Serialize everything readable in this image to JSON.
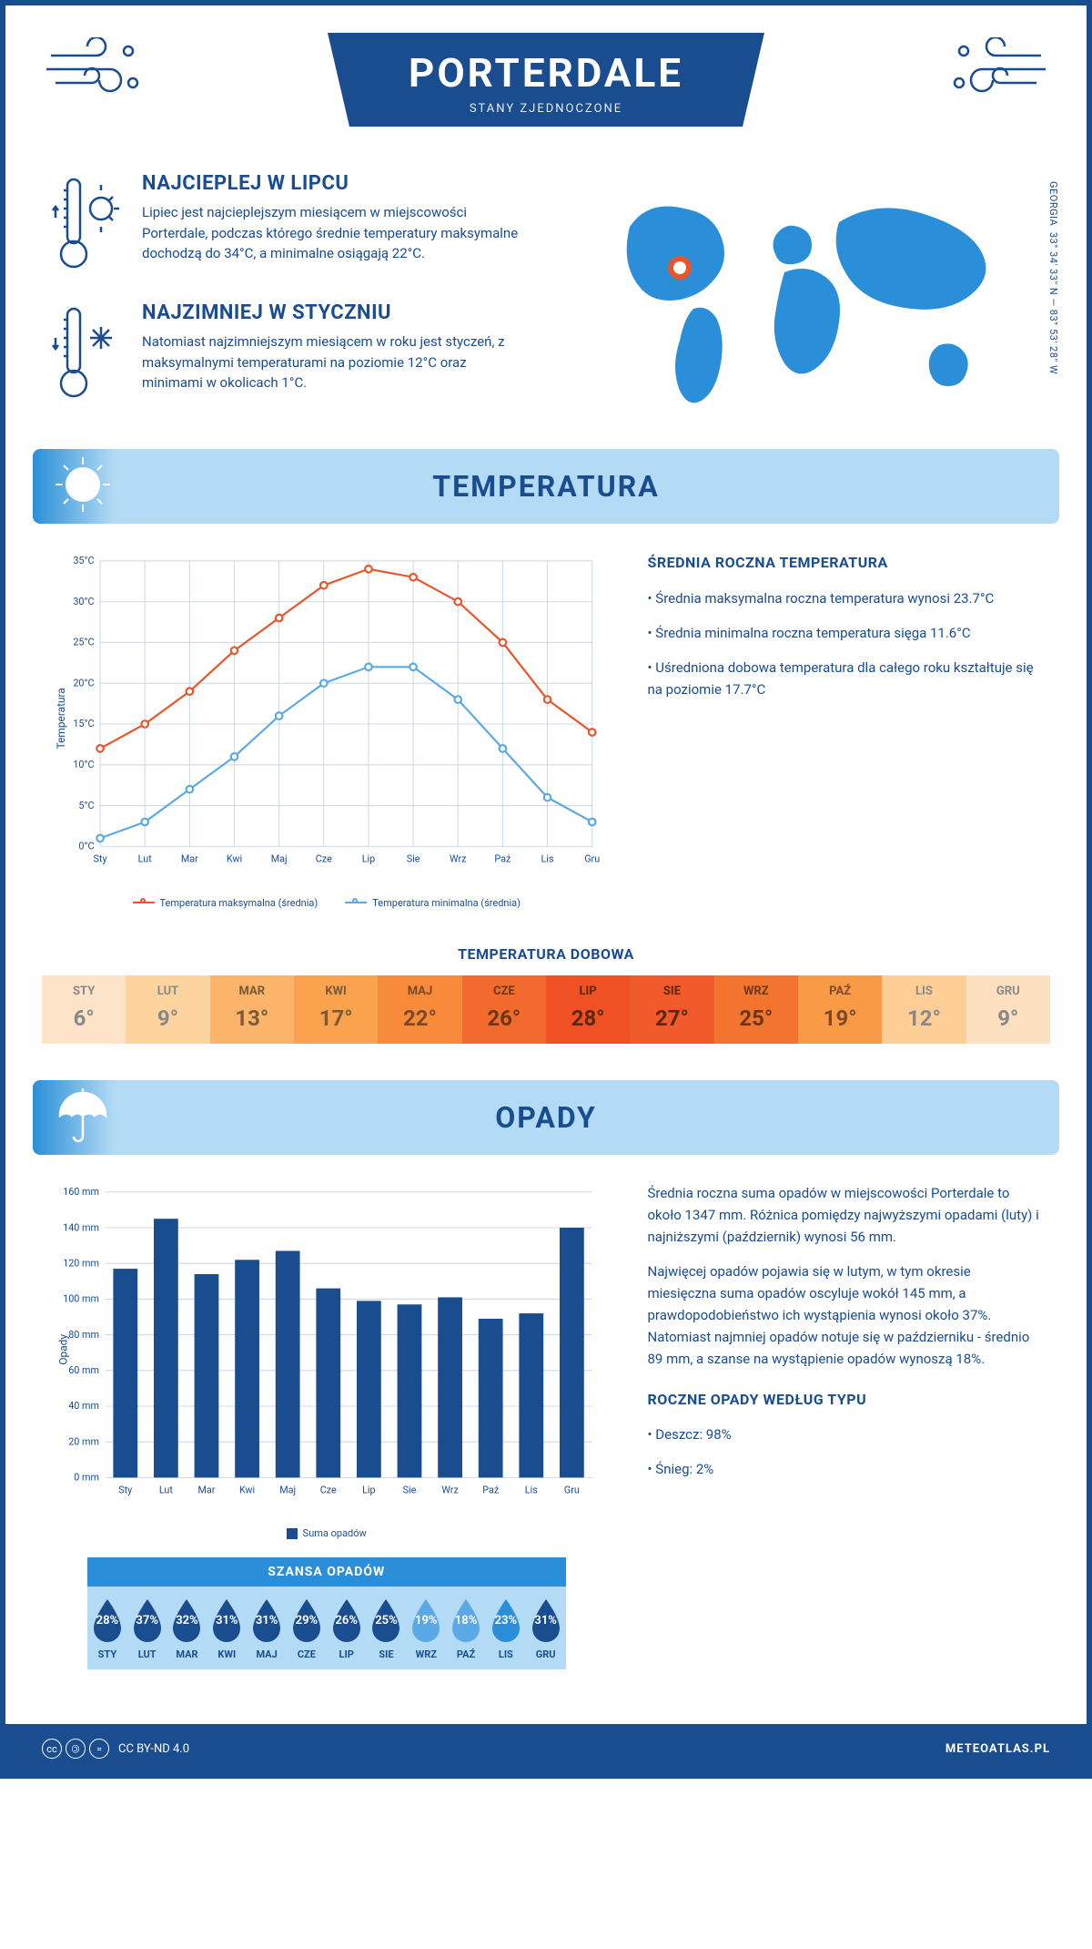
{
  "header": {
    "city": "PORTERDALE",
    "country": "STANY ZJEDNOCZONE"
  },
  "coords": {
    "text": "33° 34' 33'' N — 83° 53' 28'' W",
    "region": "GEORGIA"
  },
  "facts": {
    "warm": {
      "title": "NAJCIEPLEJ W LIPCU",
      "body": "Lipiec jest najcieplejszym miesiącem w miejscowości Porterdale, podczas którego średnie temperatury maksymalne dochodzą do 34°C, a minimalne osiągają 22°C."
    },
    "cold": {
      "title": "NAJZIMNIEJ W STYCZNIU",
      "body": "Natomiast najzimniejszym miesiącem w roku jest styczeń, z maksymalnymi temperaturami na poziomie 12°C oraz minimami w okolicach 1°C."
    }
  },
  "temp_section": {
    "title": "TEMPERATURA",
    "stats_title": "ŚREDNIA ROCZNA TEMPERATURA",
    "bullets": [
      "• Średnia maksymalna roczna temperatura wynosi 23.7°C",
      "• Średnia minimalna roczna temperatura sięga 11.6°C",
      "• Uśredniona dobowa temperatura dla całego roku kształtuje się na poziomie 17.7°C"
    ],
    "chart": {
      "type": "line",
      "months": [
        "Sty",
        "Lut",
        "Mar",
        "Kwi",
        "Maj",
        "Cze",
        "Lip",
        "Sie",
        "Wrz",
        "Paź",
        "Lis",
        "Gru"
      ],
      "ylabel": "Temperatura",
      "ylim": [
        0,
        35
      ],
      "ytick_step": 5,
      "ytick_suffix": "°C",
      "grid_color": "#d0d8e8",
      "series": [
        {
          "name": "Temperatura maksymalna (średnia)",
          "color": "#e8552b",
          "values": [
            12,
            15,
            19,
            24,
            28,
            32,
            34,
            33,
            30,
            25,
            18,
            14
          ]
        },
        {
          "name": "Temperatura minimalna (średnia)",
          "color": "#5aa9e6",
          "values": [
            1,
            3,
            7,
            11,
            16,
            20,
            22,
            22,
            18,
            12,
            6,
            3
          ]
        }
      ]
    },
    "daily_title": "TEMPERATURA DOBOWA",
    "daily": {
      "months": [
        "STY",
        "LUT",
        "MAR",
        "KWI",
        "MAJ",
        "CZE",
        "LIP",
        "SIE",
        "WRZ",
        "PAŹ",
        "LIS",
        "GRU"
      ],
      "values": [
        "6°",
        "9°",
        "13°",
        "17°",
        "22°",
        "26°",
        "28°",
        "27°",
        "25°",
        "19°",
        "12°",
        "9°"
      ],
      "bg_colors": [
        "#fde4c8",
        "#fdd39e",
        "#fcb36a",
        "#faa24e",
        "#f78b3a",
        "#f26a2e",
        "#ef5124",
        "#f15a2a",
        "#f3742f",
        "#f99a47",
        "#fdcf97",
        "#fde0bf"
      ],
      "text_colors": [
        "#888",
        "#888",
        "#7a5a3a",
        "#7a5a3a",
        "#7a4a2a",
        "#6a3818",
        "#5a2808",
        "#5a2808",
        "#6a3818",
        "#7a4a2a",
        "#888",
        "#888"
      ]
    }
  },
  "precip_section": {
    "title": "OPADY",
    "para1": "Średnia roczna suma opadów w miejscowości Porterdale to około 1347 mm. Różnica pomiędzy najwyższymi opadami (luty) i najniższymi (październik) wynosi 56 mm.",
    "para2": "Najwięcej opadów pojawia się w lutym, w tym okresie miesięczna suma opadów oscyluje wokół 145 mm, a prawdopodobieństwo ich wystąpienia wynosi około 37%. Natomiast najmniej opadów notuje się w październiku - średnio 89 mm, a szanse na wystąpienie opadów wynoszą 18%.",
    "chart": {
      "type": "bar",
      "months": [
        "Sty",
        "Lut",
        "Mar",
        "Kwi",
        "Maj",
        "Cze",
        "Lip",
        "Sie",
        "Wrz",
        "Paź",
        "Lis",
        "Gru"
      ],
      "ylabel": "Opady",
      "ylim": [
        0,
        160
      ],
      "ytick_step": 20,
      "ytick_suffix": " mm",
      "bar_color": "#1a4d8f",
      "grid_color": "#d0d8e8",
      "legend": "Suma opadów",
      "values": [
        117,
        145,
        114,
        122,
        127,
        106,
        99,
        97,
        101,
        89,
        92,
        140
      ]
    },
    "chance_title": "SZANSA OPADÓW",
    "chance": {
      "months": [
        "STY",
        "LUT",
        "MAR",
        "KWI",
        "MAJ",
        "CZE",
        "LIP",
        "SIE",
        "WRZ",
        "PAŹ",
        "LIS",
        "GRU"
      ],
      "values": [
        "28%",
        "37%",
        "32%",
        "31%",
        "31%",
        "29%",
        "26%",
        "25%",
        "19%",
        "18%",
        "23%",
        "31%"
      ],
      "colors": [
        "#1a4d8f",
        "#1a4d8f",
        "#1a4d8f",
        "#1a4d8f",
        "#1a4d8f",
        "#1a4d8f",
        "#1a4d8f",
        "#1a4d8f",
        "#5aa9e6",
        "#5aa9e6",
        "#2a8fd8",
        "#1a4d8f"
      ]
    },
    "type_title": "ROCZNE OPADY WEDŁUG TYPU",
    "type_bullets": [
      "• Deszcz: 98%",
      "• Śnieg: 2%"
    ]
  },
  "footer": {
    "license": "CC BY-ND 4.0",
    "site": "METEOATLAS.PL"
  }
}
